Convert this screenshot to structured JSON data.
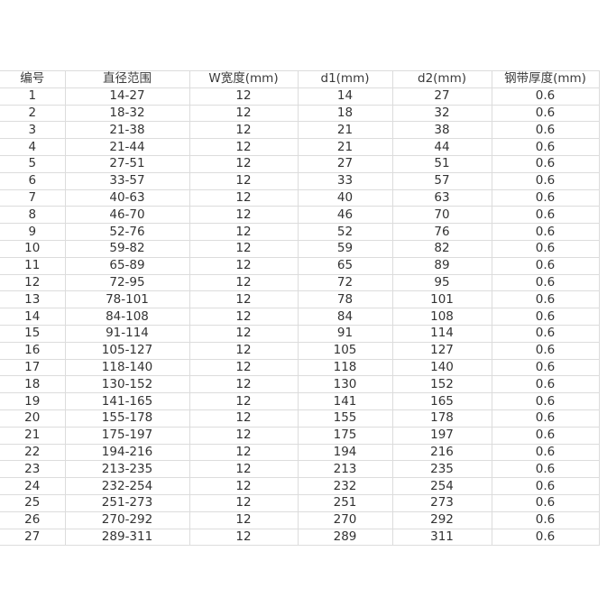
{
  "headers": [
    "编号",
    "直径范围",
    "W宽度(mm)",
    "d1(mm)",
    "d2(mm)",
    "钢带厚度(mm)"
  ],
  "rows": [
    [
      "1",
      "14-27",
      "12",
      "14",
      "27",
      "0.6"
    ],
    [
      "2",
      "18-32",
      "12",
      "18",
      "32",
      "0.6"
    ],
    [
      "3",
      "21-38",
      "12",
      "21",
      "38",
      "0.6"
    ],
    [
      "4",
      "21-44",
      "12",
      "21",
      "44",
      "0.6"
    ],
    [
      "5",
      "27-51",
      "12",
      "27",
      "51",
      "0.6"
    ],
    [
      "6",
      "33-57",
      "12",
      "33",
      "57",
      "0.6"
    ],
    [
      "7",
      "40-63",
      "12",
      "40",
      "63",
      "0.6"
    ],
    [
      "8",
      "46-70",
      "12",
      "46",
      "70",
      "0.6"
    ],
    [
      "9",
      "52-76",
      "12",
      "52",
      "76",
      "0.6"
    ],
    [
      "10",
      "59-82",
      "12",
      "59",
      "82",
      "0.6"
    ],
    [
      "11",
      "65-89",
      "12",
      "65",
      "89",
      "0.6"
    ],
    [
      "12",
      "72-95",
      "12",
      "72",
      "95",
      "0.6"
    ],
    [
      "13",
      "78-101",
      "12",
      "78",
      "101",
      "0.6"
    ],
    [
      "14",
      "84-108",
      "12",
      "84",
      "108",
      "0.6"
    ],
    [
      "15",
      "91-114",
      "12",
      "91",
      "114",
      "0.6"
    ],
    [
      "16",
      "105-127",
      "12",
      "105",
      "127",
      "0.6"
    ],
    [
      "17",
      "118-140",
      "12",
      "118",
      "140",
      "0.6"
    ],
    [
      "18",
      "130-152",
      "12",
      "130",
      "152",
      "0.6"
    ],
    [
      "19",
      "141-165",
      "12",
      "141",
      "165",
      "0.6"
    ],
    [
      "20",
      "155-178",
      "12",
      "155",
      "178",
      "0.6"
    ],
    [
      "21",
      "175-197",
      "12",
      "175",
      "197",
      "0.6"
    ],
    [
      "22",
      "194-216",
      "12",
      "194",
      "216",
      "0.6"
    ],
    [
      "23",
      "213-235",
      "12",
      "213",
      "235",
      "0.6"
    ],
    [
      "24",
      "232-254",
      "12",
      "232",
      "254",
      "0.6"
    ],
    [
      "25",
      "251-273",
      "12",
      "251",
      "273",
      "0.6"
    ],
    [
      "26",
      "270-292",
      "12",
      "270",
      "292",
      "0.6"
    ],
    [
      "27",
      "289-311",
      "12",
      "289",
      "311",
      "0.6"
    ]
  ]
}
